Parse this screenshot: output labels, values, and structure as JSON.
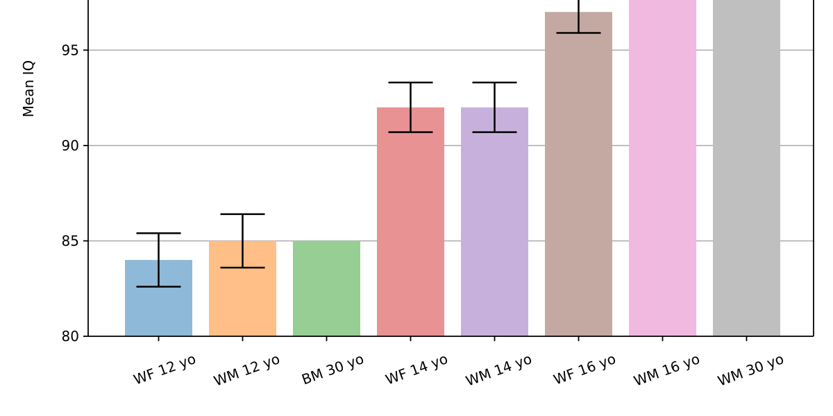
{
  "chart_data": {
    "type": "bar",
    "title": "",
    "xlabel": "",
    "ylabel": "Mean IQ",
    "categories": [
      "WF 12 yo",
      "WM 12 yo",
      "BM 30 yo",
      "WF 14 yo",
      "WM 14 yo",
      "WF 16 yo",
      "WM 16 yo",
      "WM 30 yo"
    ],
    "values": [
      84,
      85,
      85,
      92,
      92,
      97,
      98,
      98
    ],
    "errors": [
      1.4,
      1.4,
      null,
      1.3,
      1.3,
      1.1,
      null,
      null
    ],
    "colors": [
      "#8fb9d8",
      "#ffbf87",
      "#96ce93",
      "#e99294",
      "#c7b1dc",
      "#c4a9a2",
      "#f0b9df",
      "#bfbfbf"
    ],
    "yticks": [
      80,
      85,
      90,
      95
    ],
    "ylim": [
      80,
      97.7
    ],
    "grid": "horizontal",
    "legend": "none"
  }
}
